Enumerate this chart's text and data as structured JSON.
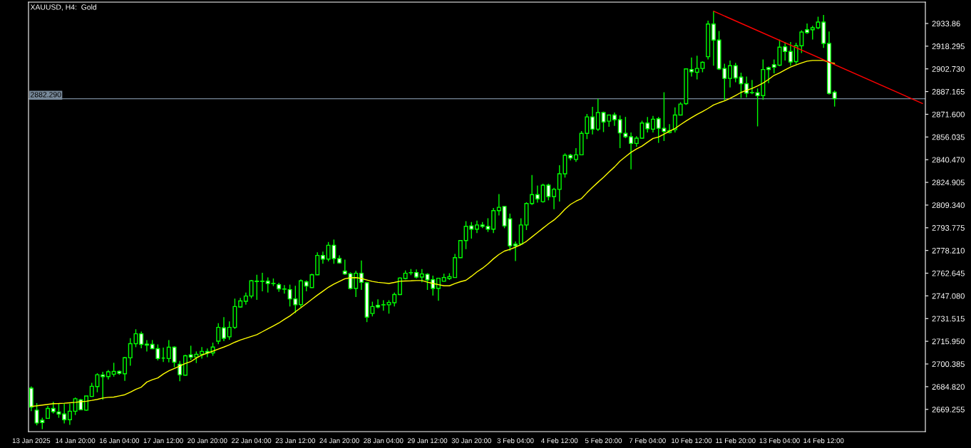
{
  "chart_data": {
    "type": "candlestick",
    "title": "XAUUSD, H4:  Gold",
    "categories": [
      "13 Jan 2025",
      null,
      null,
      null,
      null,
      null,
      null,
      null,
      "14 Jan 20:00",
      null,
      null,
      null,
      null,
      null,
      null,
      null,
      "16 Jan 04:00",
      null,
      null,
      null,
      null,
      null,
      null,
      null,
      "17 Jan 12:00",
      null,
      null,
      null,
      null,
      null,
      null,
      null,
      "20 Jan 20:00",
      null,
      null,
      null,
      null,
      null,
      null,
      null,
      "22 Jan 04:00",
      null,
      null,
      null,
      null,
      null,
      null,
      null,
      "23 Jan 12:00",
      null,
      null,
      null,
      null,
      null,
      null,
      null,
      "24 Jan 20:00",
      null,
      null,
      null,
      null,
      null,
      null,
      null,
      "28 Jan 04:00",
      null,
      null,
      null,
      null,
      null,
      null,
      null,
      "29 Jan 12:00",
      null,
      null,
      null,
      null,
      null,
      null,
      null,
      "30 Jan 20:00",
      null,
      null,
      null,
      null,
      null,
      null,
      null,
      "3 Feb 04:00",
      null,
      null,
      null,
      null,
      null,
      null,
      null,
      "4 Feb 12:00",
      null,
      null,
      null,
      null,
      null,
      null,
      null,
      "5 Feb 20:00",
      null,
      null,
      null,
      null,
      null,
      null,
      null,
      "7 Feb 04:00",
      null,
      null,
      null,
      null,
      null,
      null,
      null,
      "10 Feb 12:00",
      null,
      null,
      null,
      null,
      null,
      null,
      null,
      "11 Feb 20:00",
      null,
      null,
      null,
      null,
      null,
      null,
      null,
      "13 Feb 04:00",
      null,
      null,
      null,
      null,
      null,
      null,
      null,
      "14 Feb 12:00",
      null,
      null,
      null,
      null,
      null,
      null,
      null,
      null,
      null,
      null,
      null,
      null,
      null,
      null,
      null,
      null,
      null,
      null
    ],
    "ylim": [
      2654.0,
      2948.5
    ],
    "yticks": [
      2669.255,
      {
        "value": 2684.82,
        "label": "2684.820"
      },
      2700.385,
      {
        "value": 2715.95,
        "label": "2715.950"
      },
      2731.515,
      {
        "value": 2747.08,
        "label": "2747.080"
      },
      2762.645,
      {
        "value": 2778.21,
        "label": "2778.210"
      },
      2793.775,
      {
        "value": 2809.34,
        "label": "2809.340"
      },
      2824.905,
      {
        "value": 2840.47,
        "label": "2840.470"
      },
      2856.035,
      {
        "value": 2871.6,
        "label": "2871.600"
      },
      2887.165,
      {
        "value": 2902.73,
        "label": "2902.730"
      },
      2918.295,
      2933.86
    ],
    "ref_lines": [
      {
        "axis": "y",
        "value": 2882.29,
        "label": "2882.290",
        "color": "#778899"
      }
    ],
    "series": [
      {
        "color": "#00ff00",
        "ohlc": [
          [
            2683.8,
            2685.0,
            2668.0,
            2670.8
          ],
          [
            2668.7,
            2673.5,
            2658.3,
            2659.9
          ],
          [
            2661.8,
            2663.5,
            2655.7,
            2660.2
          ],
          [
            2663.1,
            2671.6,
            2662.8,
            2669.9
          ],
          [
            2669.9,
            2674.5,
            2666.4,
            2667.7
          ],
          [
            2667.5,
            2673.5,
            2663.5,
            2666.1
          ],
          [
            2666.1,
            2673.2,
            2659.6,
            2662.2
          ],
          [
            2662.2,
            2673.2,
            2658.6,
            2668.0
          ],
          [
            2668.0,
            2677.4,
            2665.4,
            2676.5
          ],
          [
            2675.8,
            2676.5,
            2668.7,
            2669.0
          ],
          [
            2668.7,
            2678.4,
            2668.3,
            2678.4
          ],
          [
            2678.1,
            2687.5,
            2677.8,
            2685.1
          ],
          [
            2684.9,
            2694.0,
            2681.0,
            2693.0
          ],
          [
            2692.9,
            2695.0,
            2675.8,
            2691.7
          ],
          [
            2691.7,
            2696.3,
            2689.8,
            2695.0
          ],
          [
            2693.4,
            2701.2,
            2691.7,
            2695.3
          ],
          [
            2695.3,
            2695.9,
            2693.0,
            2694.0
          ],
          [
            2693.7,
            2705.1,
            2688.8,
            2704.7
          ],
          [
            2704.6,
            2718.1,
            2699.2,
            2714.3
          ],
          [
            2714.3,
            2724.2,
            2711.9,
            2721.1
          ],
          [
            2721.1,
            2722.6,
            2711.2,
            2713.8
          ],
          [
            2714.0,
            2716.8,
            2708.9,
            2713.3
          ],
          [
            2713.8,
            2716.8,
            2710.6,
            2710.9
          ],
          [
            2710.9,
            2713.8,
            2702.8,
            2704.1
          ],
          [
            2704.4,
            2711.6,
            2701.8,
            2704.4
          ],
          [
            2704.1,
            2716.8,
            2701.5,
            2711.9
          ],
          [
            2711.9,
            2712.5,
            2698.2,
            2701.6
          ],
          [
            2700.2,
            2702.5,
            2688.5,
            2693.0
          ],
          [
            2692.7,
            2706.7,
            2692.4,
            2706.0
          ],
          [
            2706.7,
            2712.9,
            2703.1,
            2705.1
          ],
          [
            2705.1,
            2709.0,
            2701.0,
            2707.0
          ],
          [
            2707.0,
            2712.0,
            2704.0,
            2709.0
          ],
          [
            2709.0,
            2711.0,
            2705.0,
            2708.0
          ],
          [
            2708.0,
            2715.0,
            2706.0,
            2712.0
          ],
          [
            2716.0,
            2728.4,
            2714.0,
            2725.5
          ],
          [
            2725.2,
            2732.5,
            2716.0,
            2718.0
          ],
          [
            2719.0,
            2729.6,
            2717.0,
            2725.5
          ],
          [
            2725.5,
            2745.2,
            2724.4,
            2739.8
          ],
          [
            2739.5,
            2745.7,
            2739.0,
            2743.6
          ],
          [
            2743.4,
            2749.3,
            2741.1,
            2747.0
          ],
          [
            2747.0,
            2758.0,
            2745.4,
            2757.4
          ],
          [
            2756.9,
            2761.6,
            2744.4,
            2757.2
          ],
          [
            2757.2,
            2762.9,
            2750.2,
            2757.0
          ],
          [
            2757.2,
            2759.7,
            2749.3,
            2755.6
          ],
          [
            2755.6,
            2759.0,
            2753.8,
            2755.5
          ],
          [
            2754.8,
            2756.1,
            2749.9,
            2751.9
          ],
          [
            2751.8,
            2754.5,
            2748.6,
            2751.7
          ],
          [
            2751.4,
            2754.8,
            2739.8,
            2745.0
          ],
          [
            2745.0,
            2754.0,
            2735.3,
            2741.0
          ],
          [
            2741.1,
            2758.4,
            2739.5,
            2757.4
          ],
          [
            2756.7,
            2757.7,
            2750.2,
            2753.8
          ],
          [
            2752.8,
            2762.3,
            2752.5,
            2761.6
          ],
          [
            2761.6,
            2776.9,
            2761.3,
            2774.8
          ],
          [
            2774.8,
            2777.5,
            2769.1,
            2772.3
          ],
          [
            2772.3,
            2784.0,
            2770.7,
            2781.8
          ],
          [
            2781.8,
            2785.7,
            2769.1,
            2772.7
          ],
          [
            2772.7,
            2774.9,
            2769.1,
            2769.7
          ],
          [
            2764.0,
            2772.0,
            2761.5,
            2762.1
          ],
          [
            2762.3,
            2763.2,
            2751.5,
            2752.2
          ],
          [
            2752.2,
            2764.2,
            2746.3,
            2762.6
          ],
          [
            2762.6,
            2771.3,
            2751.2,
            2756.4
          ],
          [
            2756.1,
            2756.7,
            2729.1,
            2732.5
          ],
          [
            2735.0,
            2743.1,
            2733.0,
            2739.8
          ],
          [
            2740.6,
            2744.7,
            2738.5,
            2739.5
          ],
          [
            2740.9,
            2744.1,
            2736.9,
            2741.0
          ],
          [
            2741.0,
            2744.1,
            2734.9,
            2742.6
          ],
          [
            2742.4,
            2749.3,
            2739.8,
            2748.0
          ],
          [
            2748.0,
            2759.7,
            2747.6,
            2759.3
          ],
          [
            2759.0,
            2764.5,
            2758.4,
            2762.6
          ],
          [
            2762.9,
            2765.5,
            2761.3,
            2763.0
          ],
          [
            2763.1,
            2765.2,
            2759.0,
            2760.0
          ],
          [
            2760.0,
            2765.5,
            2756.4,
            2762.1
          ],
          [
            2761.9,
            2762.6,
            2751.2,
            2758.0
          ],
          [
            2758.2,
            2761.0,
            2747.3,
            2752.2
          ],
          [
            2752.2,
            2759.3,
            2743.7,
            2759.2
          ],
          [
            2757.1,
            2762.3,
            2756.9,
            2759.7
          ],
          [
            2759.0,
            2762.6,
            2758.0,
            2760.3
          ],
          [
            2759.7,
            2775.9,
            2759.5,
            2773.3
          ],
          [
            2773.3,
            2785.3,
            2773.0,
            2785.0
          ],
          [
            2785.0,
            2798.3,
            2779.1,
            2794.8
          ],
          [
            2795.1,
            2797.7,
            2786.3,
            2792.8
          ],
          [
            2792.8,
            2798.7,
            2790.2,
            2795.7
          ],
          [
            2795.7,
            2797.7,
            2793.5,
            2794.7
          ],
          [
            2794.7,
            2800.3,
            2790.9,
            2792.8
          ],
          [
            2792.8,
            2807.4,
            2790.2,
            2805.5
          ],
          [
            2805.5,
            2816.9,
            2802.2,
            2807.8
          ],
          [
            2808.4,
            2808.5,
            2793.5,
            2795.1
          ],
          [
            2799.9,
            2803.5,
            2777.9,
            2781.4
          ],
          [
            2782.6,
            2784.4,
            2771.0,
            2781.4
          ],
          [
            2782.7,
            2800.3,
            2782.1,
            2795.7
          ],
          [
            2795.7,
            2811.3,
            2792.2,
            2810.4
          ],
          [
            2810.4,
            2829.9,
            2809.4,
            2816.5
          ],
          [
            2816.5,
            2822.7,
            2811.0,
            2813.6
          ],
          [
            2811.7,
            2824.0,
            2811.0,
            2823.0
          ],
          [
            2823.0,
            2824.0,
            2812.6,
            2815.2
          ],
          [
            2815.2,
            2821.1,
            2806.5,
            2820.1
          ],
          [
            2820.1,
            2836.7,
            2811.7,
            2830.8
          ],
          [
            2830.8,
            2844.8,
            2828.2,
            2843.5
          ],
          [
            2843.5,
            2844.5,
            2839.9,
            2841.6
          ],
          [
            2840.6,
            2848.4,
            2839.0,
            2843.8
          ],
          [
            2843.8,
            2860.1,
            2843.5,
            2858.5
          ],
          [
            2858.5,
            2871.8,
            2854.6,
            2869.8
          ],
          [
            2869.8,
            2876.7,
            2857.8,
            2861.4
          ],
          [
            2861.4,
            2882.2,
            2860.1,
            2872.8
          ],
          [
            2872.8,
            2873.4,
            2859.4,
            2866.3
          ],
          [
            2866.9,
            2871.3,
            2863.0,
            2871.1
          ],
          [
            2871.1,
            2872.8,
            2863.7,
            2867.9
          ],
          [
            2867.9,
            2870.8,
            2848.4,
            2858.8
          ],
          [
            2858.5,
            2869.8,
            2855.2,
            2856.2
          ],
          [
            2856.2,
            2859.1,
            2833.8,
            2851.6
          ],
          [
            2851.6,
            2856.5,
            2849.4,
            2855.2
          ],
          [
            2855.2,
            2867.2,
            2854.9,
            2865.6
          ],
          [
            2865.6,
            2869.8,
            2859.1,
            2861.7
          ],
          [
            2861.4,
            2870.5,
            2859.1,
            2868.2
          ],
          [
            2868.5,
            2869.8,
            2852.0,
            2862.0
          ],
          [
            2862.0,
            2886.7,
            2853.3,
            2859.8
          ],
          [
            2859.1,
            2864.9,
            2858.5,
            2860.4
          ],
          [
            2861.0,
            2876.3,
            2859.1,
            2871.1
          ],
          [
            2871.1,
            2879.9,
            2870.8,
            2878.6
          ],
          [
            2878.9,
            2903.0,
            2878.0,
            2902.7
          ],
          [
            2902.3,
            2910.5,
            2897.5,
            2900.7
          ],
          [
            2900.4,
            2911.8,
            2895.5,
            2903.0
          ],
          [
            2903.0,
            2907.9,
            2900.4,
            2907.2
          ],
          [
            2911.1,
            2935.8,
            2909.2,
            2933.5
          ],
          [
            2933.5,
            2942.3,
            2904.9,
            2922.5
          ],
          [
            2922.5,
            2928.7,
            2902.0,
            2902.7
          ],
          [
            2903.0,
            2906.2,
            2881.2,
            2896.2
          ],
          [
            2896.2,
            2908.5,
            2890.0,
            2904.9
          ],
          [
            2904.9,
            2906.9,
            2893.6,
            2896.5
          ],
          [
            2897.1,
            2900.1,
            2882.8,
            2892.6
          ],
          [
            2892.6,
            2897.5,
            2883.2,
            2886.1
          ],
          [
            2886.4,
            2895.2,
            2885.4,
            2886.5
          ],
          [
            2886.4,
            2889.3,
            2863.3,
            2884.4
          ],
          [
            2884.4,
            2909.2,
            2881.5,
            2902.3
          ],
          [
            2903.6,
            2904.3,
            2892.9,
            2902.3
          ],
          [
            2905.6,
            2909.2,
            2899.7,
            2903.9
          ],
          [
            2905.3,
            2922.8,
            2904.6,
            2917.6
          ],
          [
            2917.9,
            2920.9,
            2908.5,
            2914.7
          ],
          [
            2914.7,
            2921.2,
            2904.9,
            2907.5
          ],
          [
            2907.7,
            2920.6,
            2906.2,
            2918.6
          ],
          [
            2918.6,
            2929.2,
            2913.6,
            2928.0
          ],
          [
            2929.6,
            2933.9,
            2926.8,
            2927.6
          ],
          [
            2929.6,
            2932.3,
            2922.9,
            2930.9
          ],
          [
            2930.9,
            2938.5,
            2929.9,
            2934.8
          ],
          [
            2934.8,
            2939.7,
            2917.1,
            2920.2
          ],
          [
            2920.2,
            2928.4,
            2885.1,
            2885.9
          ],
          [
            2886.7,
            2887.9,
            2876.9,
            2882.3
          ],
          null,
          null,
          null,
          null,
          null,
          null,
          null,
          null,
          null,
          null,
          null,
          null,
          null,
          null,
          null,
          null
        ]
      },
      {
        "type": "line",
        "color": "#ffff00",
        "values": [
          2671.3,
          2671.7,
          2672.2,
          2672.7,
          2673.2,
          2673.3,
          2673.5,
          2673.8,
          2674.1,
          2674.5,
          2674.8,
          2675.4,
          2676.1,
          2677.0,
          2677.5,
          2677.7,
          2678.5,
          2679.3,
          2681.0,
          2683.0,
          2684.5,
          2688.0,
          2689.6,
          2690.8,
          2693.5,
          2695.7,
          2697.3,
          2699.0,
          2700.7,
          2702.0,
          2704.5,
          2706.5,
          2707.8,
          2709.2,
          2710.6,
          2712.0,
          2713.5,
          2715.3,
          2716.8,
          2718.0,
          2719.3,
          2720.5,
          2722.5,
          2724.5,
          2726.5,
          2728.5,
          2731.0,
          2733.3,
          2736.2,
          2739.0,
          2741.8,
          2744.7,
          2747.6,
          2750.3,
          2753.0,
          2755.2,
          2757.0,
          2758.8,
          2759.5,
          2759.6,
          2759.0,
          2758.0,
          2757.0,
          2756.4,
          2756.0,
          2755.6,
          2756.3,
          2757.1,
          2757.3,
          2757.4,
          2757.6,
          2757.6,
          2756.5,
          2755.6,
          2754.8,
          2754.0,
          2754.0,
          2755.5,
          2756.8,
          2757.8,
          2760.5,
          2763.5,
          2766.0,
          2769.0,
          2772.5,
          2775.5,
          2777.8,
          2779.0,
          2780.5,
          2782.2,
          2784.5,
          2787.5,
          2790.5,
          2793.5,
          2796.5,
          2799.1,
          2802.5,
          2806.5,
          2809.8,
          2812.0,
          2813.8,
          2817.8,
          2821.5,
          2825.0,
          2828.4,
          2832.0,
          2835.5,
          2839.5,
          2842.5,
          2845.5,
          2847.8,
          2849.8,
          2852.5,
          2855.0,
          2856.0,
          2858.0,
          2860.0,
          2861.9,
          2864.5,
          2867.0,
          2869.3,
          2871.5,
          2873.5,
          2875.6,
          2878.0,
          2879.5,
          2880.8,
          2882.5,
          2884.5,
          2886.6,
          2888.0,
          2889.3,
          2891.0,
          2893.0,
          2895.5,
          2898.3,
          2900.0,
          2902.0,
          2904.0,
          2905.5,
          2906.8,
          2908.0,
          2908.5,
          2908.5,
          2908.5,
          2907.2,
          2906.5,
          null,
          null,
          null,
          null,
          null,
          null,
          null,
          null,
          null,
          null,
          null,
          null,
          null,
          null,
          null,
          null
        ]
      },
      {
        "type": "line",
        "color": "#ff0000",
        "values": [
          null,
          null,
          null,
          null,
          null,
          null,
          null,
          null,
          null,
          null,
          null,
          null,
          null,
          null,
          null,
          null,
          null,
          null,
          null,
          null,
          null,
          null,
          null,
          null,
          null,
          null,
          null,
          null,
          null,
          null,
          null,
          null,
          null,
          null,
          null,
          null,
          null,
          null,
          null,
          null,
          null,
          null,
          null,
          null,
          null,
          null,
          null,
          null,
          null,
          null,
          null,
          null,
          null,
          null,
          null,
          null,
          null,
          null,
          null,
          null,
          null,
          null,
          null,
          null,
          null,
          null,
          null,
          null,
          null,
          null,
          null,
          null,
          null,
          null,
          null,
          null,
          null,
          null,
          null,
          null,
          null,
          null,
          null,
          null,
          null,
          null,
          null,
          null,
          null,
          null,
          null,
          null,
          null,
          null,
          null,
          null,
          null,
          null,
          null,
          null,
          null,
          null,
          null,
          null,
          null,
          null,
          null,
          null,
          null,
          null,
          null,
          null,
          null,
          null,
          null,
          null,
          null,
          null,
          null,
          null,
          null,
          null,
          null,
          null,
          2942.3,
          null,
          null,
          null,
          null,
          null,
          null,
          null,
          null,
          null,
          null,
          null,
          null,
          null,
          null,
          null,
          null,
          null,
          null,
          null,
          null,
          null,
          null,
          null,
          null,
          null,
          null,
          null,
          null,
          null,
          null,
          null,
          null,
          null,
          null,
          null,
          null,
          null,
          2879.0
        ]
      }
    ]
  }
}
